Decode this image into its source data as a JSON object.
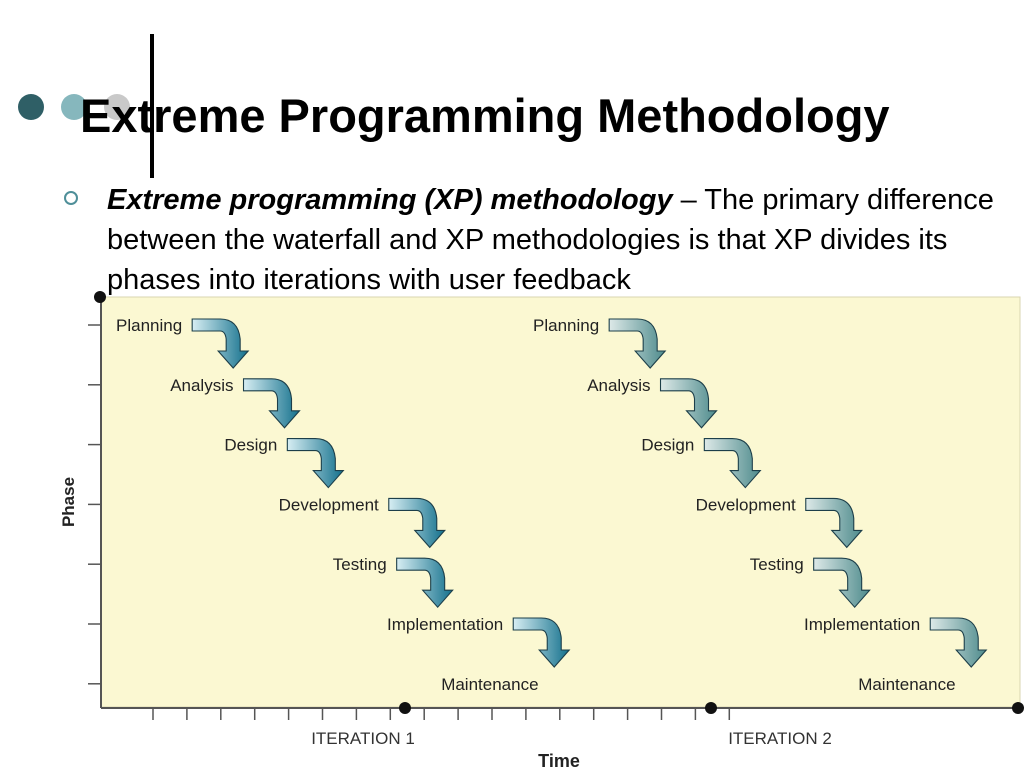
{
  "slide": {
    "title": "Extreme Programming Methodology",
    "bullet": {
      "term": "Extreme programming (XP) methodology",
      "separator": " – ",
      "text": "The primary difference between the waterfall and XP methodologies is that XP divides its phases into iterations with user feedback"
    }
  },
  "diagram": {
    "axis_y_label": "Phase",
    "axis_x_label": "Time",
    "phases": [
      "Planning",
      "Analysis",
      "Design",
      "Development",
      "Testing",
      "Implementation",
      "Maintenance"
    ],
    "iterations": [
      {
        "label": "ITERATION 1",
        "arrow_color": "#13708c"
      },
      {
        "label": "ITERATION 2",
        "arrow_color": "#4e8b8c"
      }
    ],
    "background_color": "#fbf8d2",
    "accent_colors": {
      "dots": [
        "#2f5f66",
        "#86b7bd",
        "#c9c9c9"
      ],
      "bullet": "#4f8f99"
    }
  }
}
